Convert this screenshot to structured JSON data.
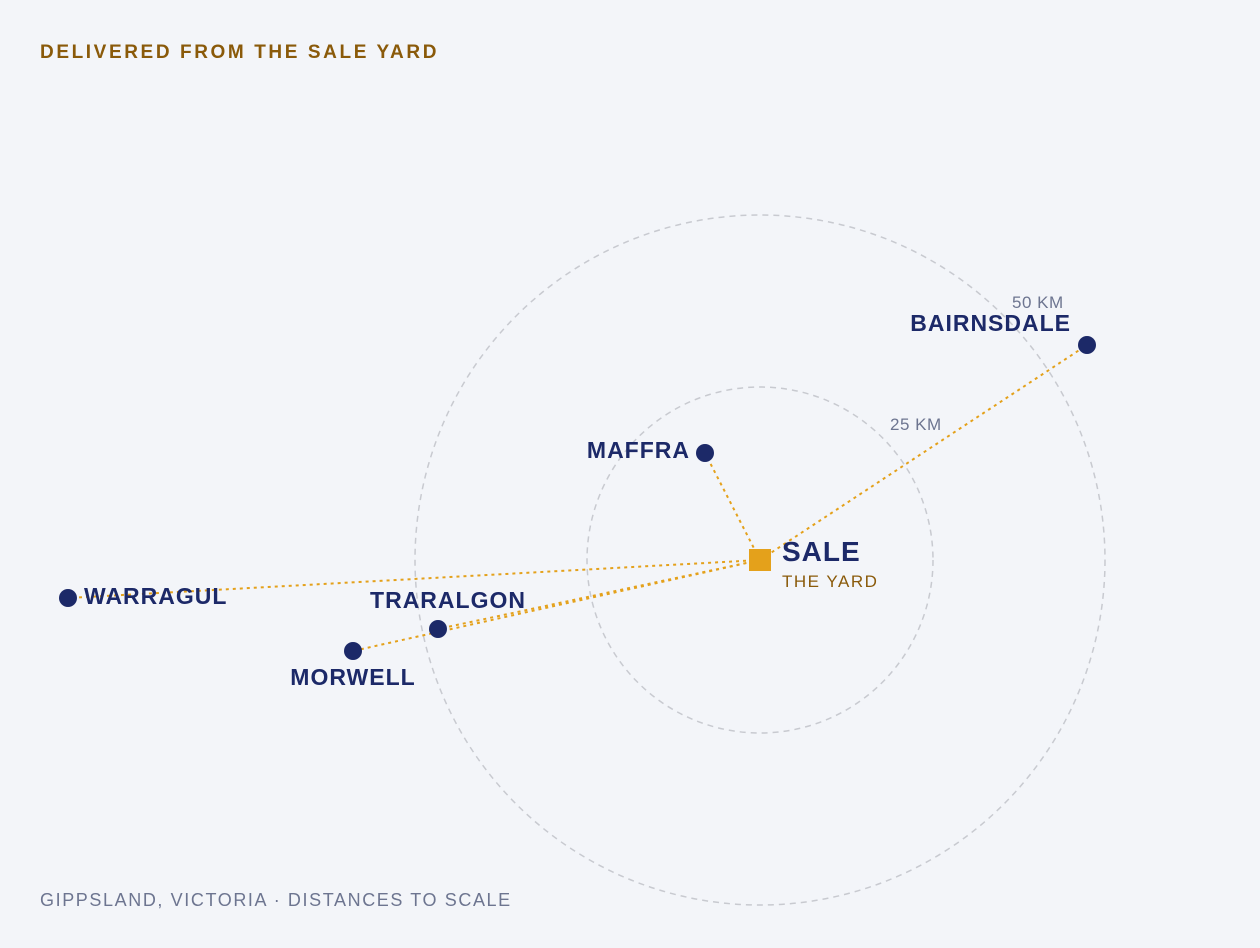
{
  "heading": "DELIVERED FROM THE SALE YARD",
  "footer": "GIPPSLAND, VICTORIA · DISTANCES TO SCALE",
  "colors": {
    "background": "#f3f5f9",
    "accent_gold": "#e4a11b",
    "heading_brown": "#8a5a0a",
    "town_navy": "#1c2968",
    "ring_grey": "#c8cad0",
    "muted_text": "#6d7590"
  },
  "hub": {
    "name": "SALE",
    "subtitle": "THE YARD"
  },
  "rings": [
    {
      "label": "25 KM"
    },
    {
      "label": "50 KM"
    }
  ],
  "towns": [
    {
      "name": "MAFFRA"
    },
    {
      "name": "BAIRNSDALE"
    },
    {
      "name": "WARRAGUL"
    },
    {
      "name": "TRARALGON"
    },
    {
      "name": "MORWELL"
    }
  ]
}
